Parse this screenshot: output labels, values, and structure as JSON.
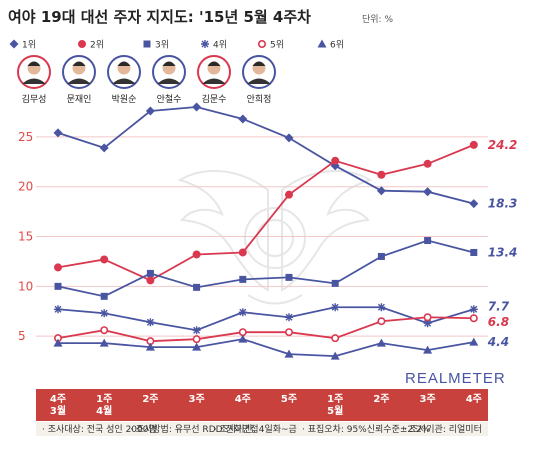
{
  "chart_data": {
    "type": "line",
    "title": "여야 19대 대선 주자 지지도: '15년 5월 4주차",
    "unit": "단위: %",
    "categories": [
      [
        "4주",
        "3월"
      ],
      [
        "1주",
        "4월"
      ],
      [
        "2주"
      ],
      [
        "3주"
      ],
      [
        "4주"
      ],
      [
        "5주"
      ],
      [
        "1주",
        "5월"
      ],
      [
        "2주"
      ],
      [
        "3주"
      ],
      [
        "4주"
      ]
    ],
    "ylim": [
      0,
      28
    ],
    "yticks": [
      5,
      10,
      15,
      20,
      25
    ],
    "legend": [
      "1위",
      "2위",
      "3위",
      "4위",
      "5위",
      "6위"
    ],
    "candidates": [
      "김무성",
      "문재인",
      "박원순",
      "안철수",
      "김문수",
      "안희정"
    ],
    "series": [
      {
        "values": [
          25.4,
          23.9,
          27.6,
          28.0,
          26.8,
          24.9,
          22.1,
          19.6,
          19.5,
          18.3
        ],
        "end_label": "18.3",
        "color": "#4a55a2",
        "marker": "diamond"
      },
      {
        "values": [
          11.9,
          12.7,
          10.6,
          13.2,
          13.4,
          19.2,
          22.6,
          21.2,
          22.3,
          24.2
        ],
        "end_label": "24.2",
        "color": "#d9384f",
        "marker": "circle"
      },
      {
        "values": [
          10.0,
          9.0,
          11.3,
          9.9,
          10.7,
          10.9,
          10.3,
          13.0,
          14.6,
          13.4
        ],
        "end_label": "13.4",
        "color": "#4a55a2",
        "marker": "square"
      },
      {
        "values": [
          7.7,
          7.3,
          6.4,
          5.6,
          7.4,
          6.9,
          7.9,
          7.9,
          6.3,
          7.7
        ],
        "end_label": "7.7",
        "color": "#4a55a2",
        "marker": "asterisk"
      },
      {
        "values": [
          4.8,
          5.6,
          4.5,
          4.7,
          5.4,
          5.4,
          4.8,
          6.5,
          6.9,
          6.8
        ],
        "end_label": "6.8",
        "color": "#d9384f",
        "marker": "ring"
      },
      {
        "values": [
          4.3,
          4.3,
          3.9,
          3.9,
          4.7,
          3.2,
          3.0,
          4.3,
          3.6,
          4.4
        ],
        "end_label": "4.4",
        "color": "#4a55a2",
        "marker": "triangle"
      }
    ],
    "footer": [
      "· 조사대상: 전국 성인 2000명",
      "· 조사방법: 유무선 RDD 전화면접",
      "· 조사기간: 4일화~금",
      "· 표집오차: 95%신뢰수준±2.2%",
      "· 조사기관: 리얼미터"
    ],
    "watermark": "REALMETER"
  },
  "colors": {
    "red": "#d9384f",
    "blue": "#4a55a2",
    "band": "#c8413c",
    "grid": "#f1c8c8"
  }
}
